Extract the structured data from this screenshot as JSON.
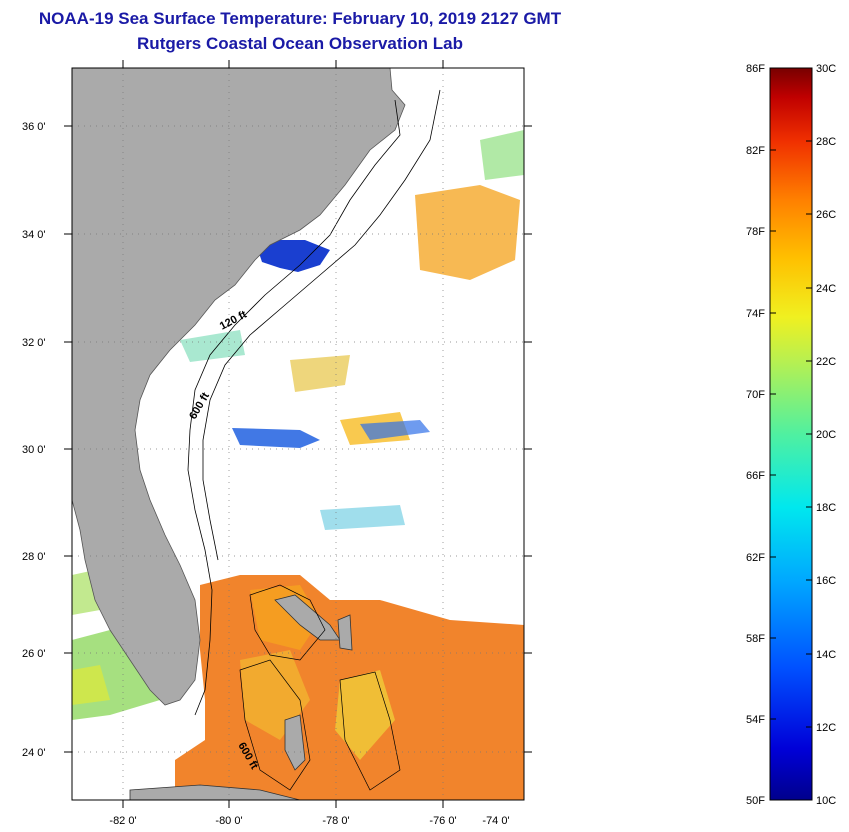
{
  "header": {
    "title_line1": "NOAA-19 Sea Surface Temperature:  February 10, 2019 2127 GMT",
    "title_line2": "Rutgers Coastal Ocean Observation Lab"
  },
  "map": {
    "lat_labels": [
      "36 0'",
      "34 0'",
      "32 0'",
      "30 0'",
      "28 0'",
      "26 0'",
      "24 0'"
    ],
    "lon_labels": [
      "-82 0'",
      "-80 0'",
      "-78 0'",
      "-76 0'",
      "-74 0'"
    ],
    "isobaths": [
      "120 ft",
      "600 ft",
      "600 ft"
    ]
  },
  "colorbar": {
    "fahrenheit_labels": [
      "86F",
      "82F",
      "78F",
      "74F",
      "70F",
      "66F",
      "62F",
      "58F",
      "54F",
      "50F"
    ],
    "celsius_labels": [
      "30C",
      "28C",
      "26C",
      "24C",
      "22C",
      "20C",
      "18C",
      "16C",
      "14C",
      "12C",
      "10C"
    ]
  },
  "colors": {
    "land": "#aaaaaa",
    "warm": "#f07a1a",
    "cold": "#1133cc",
    "title": "#1a1aa6"
  }
}
